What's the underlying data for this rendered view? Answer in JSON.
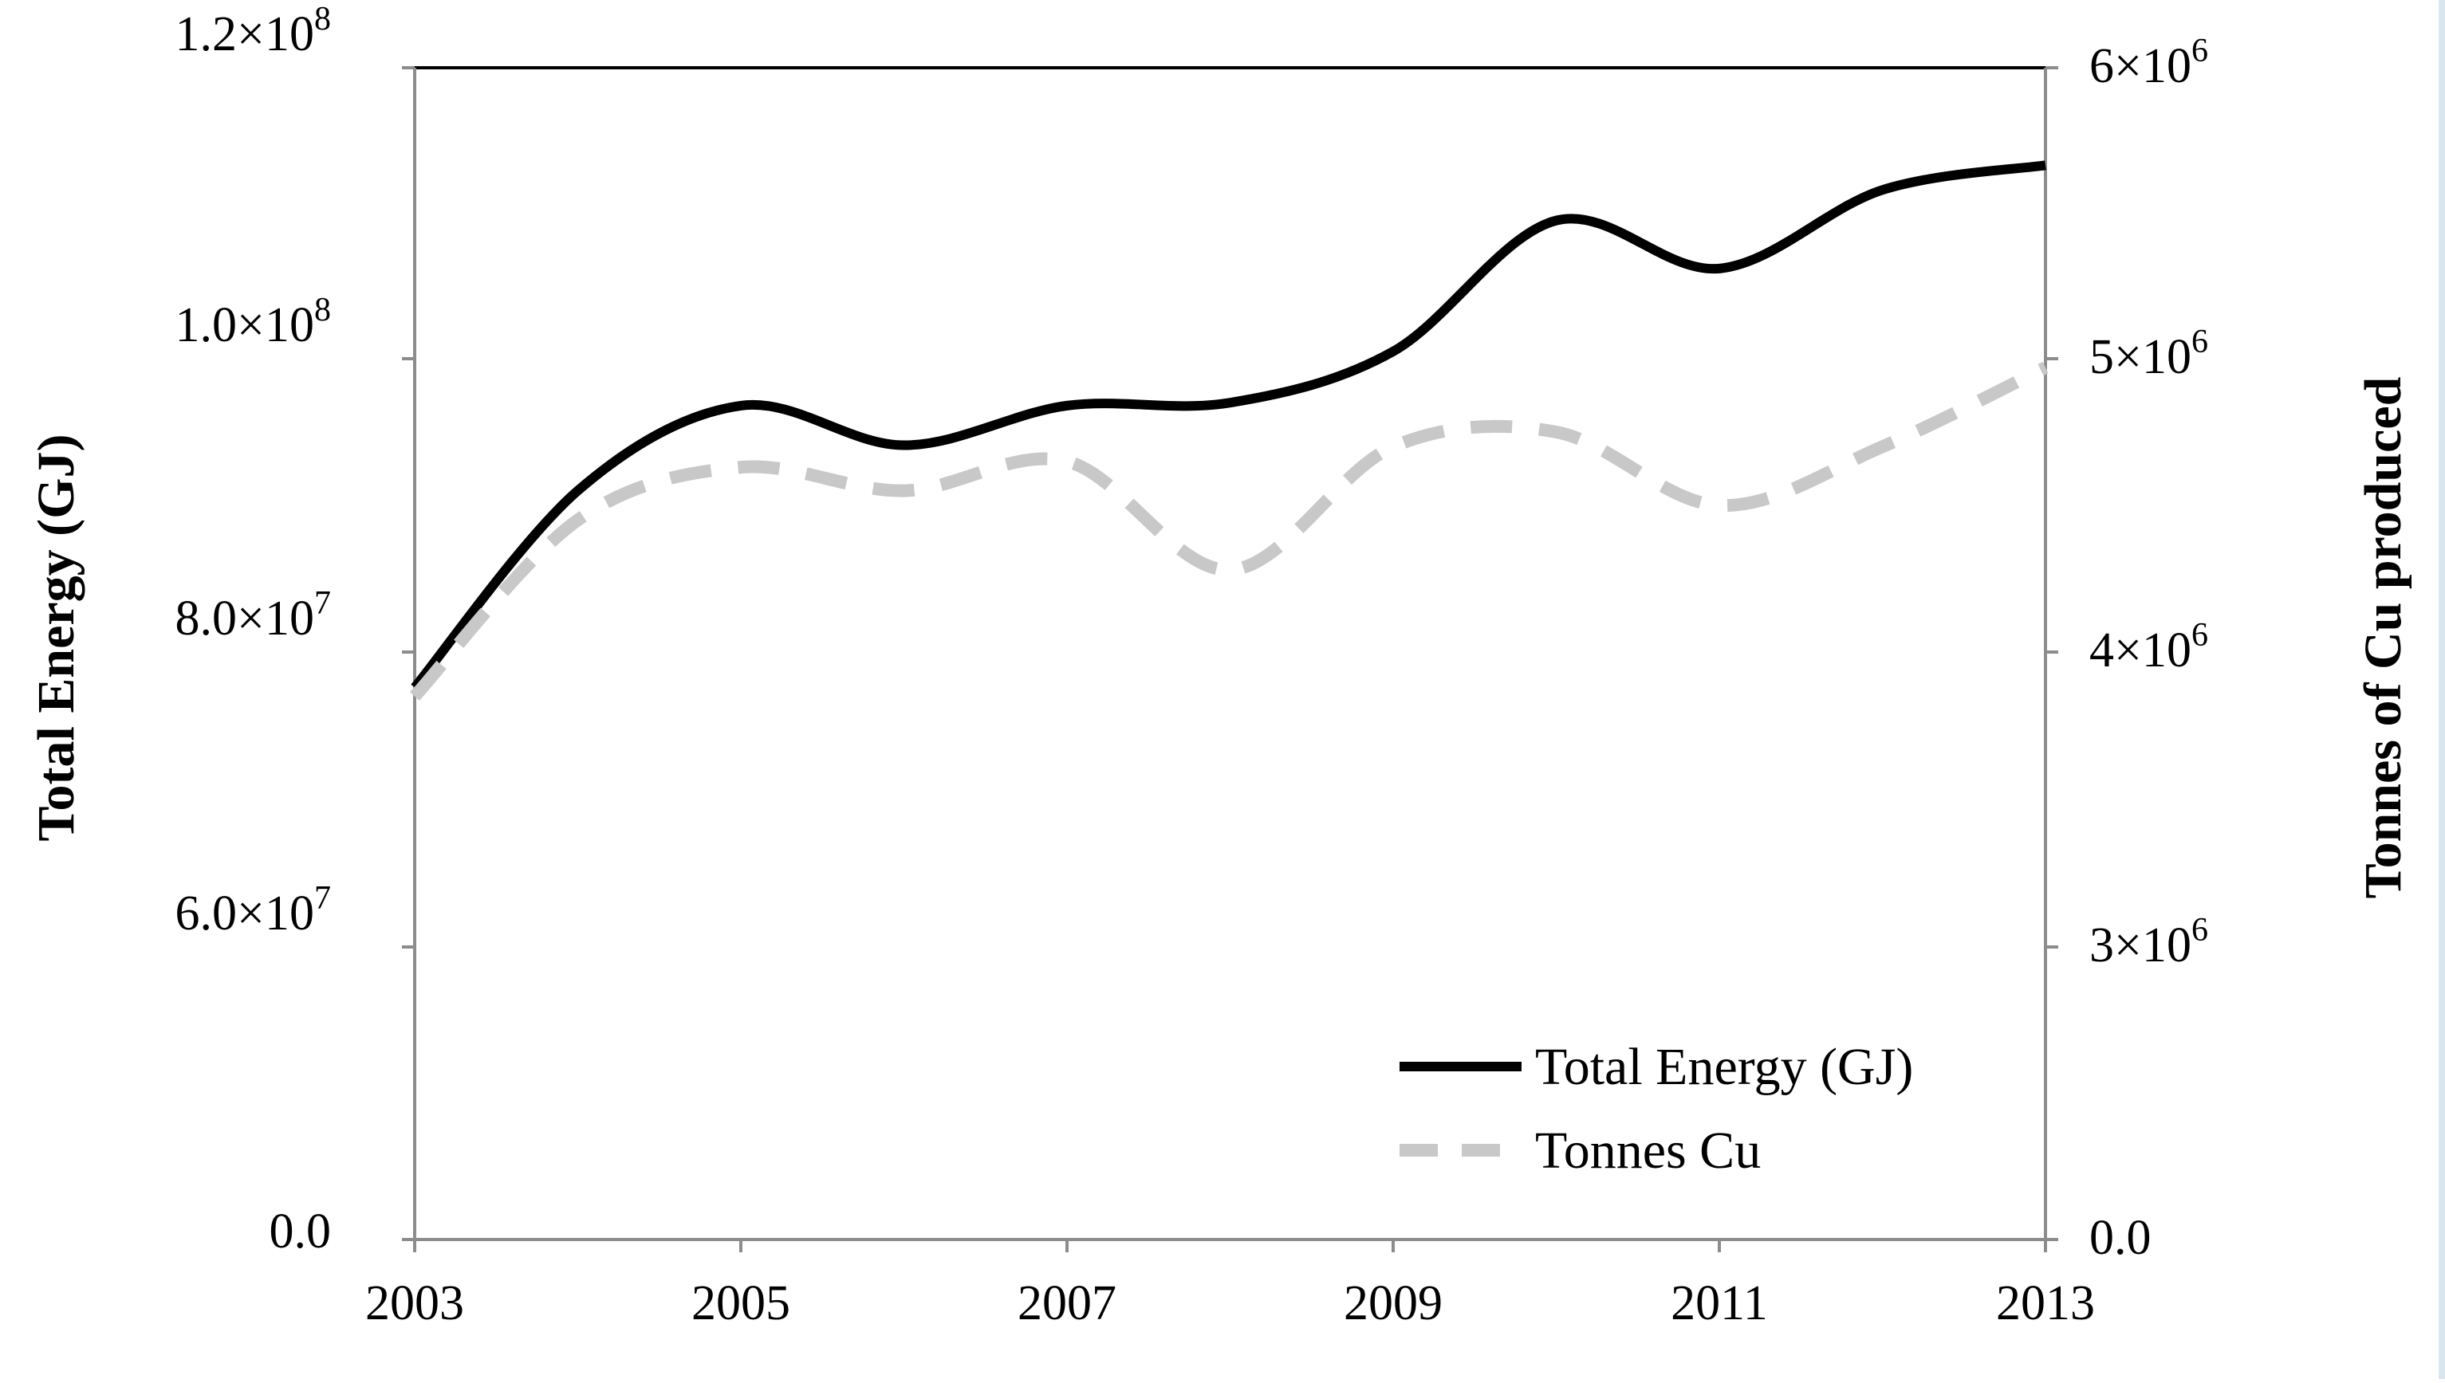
{
  "chart_data": {
    "type": "line",
    "title": "",
    "x": [
      2003,
      2004,
      2005,
      2006,
      2007,
      2008,
      2009,
      2010,
      2011,
      2012,
      2013
    ],
    "xlim": [
      2003,
      2013
    ],
    "xticks": [
      2003,
      2005,
      2007,
      2009,
      2011,
      2013
    ],
    "xtick_labels": [
      "2003",
      "2005",
      "2007",
      "2009",
      "2011",
      "2013"
    ],
    "ylabel_left": "Total Energy (GJ)",
    "ylabel_right": "Tonnes of Cu produced",
    "left_axis": {
      "display_range": [
        0,
        120000000
      ],
      "ticks": [
        {
          "label": "0.0",
          "value": 0
        },
        {
          "label_mantissa": "6.0×10",
          "label_exp": "7",
          "value": 60000000
        },
        {
          "label_mantissa": "8.0×10",
          "label_exp": "7",
          "value": 80000000
        },
        {
          "label_mantissa": "1.0×10",
          "label_exp": "8",
          "value": 100000000
        },
        {
          "label_mantissa": "1.2×10",
          "label_exp": "8",
          "value": 120000000
        }
      ]
    },
    "right_axis": {
      "display_range": [
        0,
        6000000
      ],
      "ticks": [
        {
          "label": "0.0",
          "value": 0
        },
        {
          "label_mantissa": "3×10",
          "label_exp": "6",
          "value": 3000000
        },
        {
          "label_mantissa": "4×10",
          "label_exp": "6",
          "value": 4000000
        },
        {
          "label_mantissa": "5×10",
          "label_exp": "6",
          "value": 5000000
        },
        {
          "label_mantissa": "6×10",
          "label_exp": "6",
          "value": 6000000
        }
      ]
    },
    "series": [
      {
        "name": "Total Energy (GJ)",
        "axis": "left",
        "style": "solid",
        "color": "#000000",
        "values": [
          77600000,
          91000000,
          96800000,
          94100000,
          96800000,
          97000000,
          100500000,
          109500000,
          106200000,
          111600000,
          113300000
        ]
      },
      {
        "name": "Tonnes Cu",
        "axis": "right",
        "style": "dashed",
        "color": "#c8c8c8",
        "values": [
          3850000,
          4450000,
          4630000,
          4550000,
          4650000,
          4280000,
          4700000,
          4750000,
          4500000,
          4700000,
          4970000
        ]
      }
    ],
    "legend": {
      "position": "bottom-right",
      "entries": [
        "Total Energy (GJ)",
        "Tonnes Cu"
      ]
    },
    "grid": false
  }
}
